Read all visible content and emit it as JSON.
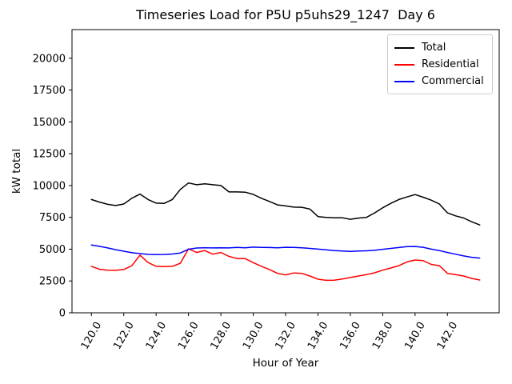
{
  "chart_data": {
    "type": "line",
    "title": "Timeseries Load for P5U p5uhs29_1247  Day 6",
    "xlabel": "Hour of Year",
    "ylabel": "kW total",
    "grid": false,
    "legend_position": "upper right",
    "xlim": [
      118.8,
      145.2
    ],
    "ylim": [
      0,
      22250
    ],
    "xticks": [
      120,
      122,
      124,
      126,
      128,
      130,
      132,
      134,
      136,
      138,
      140,
      142
    ],
    "xtick_labels": [
      "120.0",
      "122.0",
      "124.0",
      "126.0",
      "128.0",
      "130.0",
      "132.0",
      "134.0",
      "136.0",
      "138.0",
      "140.0",
      "142.0"
    ],
    "yticks": [
      0,
      2500,
      5000,
      7500,
      10000,
      12500,
      15000,
      17500,
      20000
    ],
    "ytick_labels": [
      "0",
      "2500",
      "5000",
      "7500",
      "10000",
      "12500",
      "15000",
      "17500",
      "20000"
    ],
    "x": [
      120,
      120.5,
      121,
      121.5,
      122,
      122.5,
      123,
      123.5,
      124,
      124.5,
      125,
      125.5,
      126,
      126.5,
      127,
      127.5,
      128,
      128.5,
      129,
      129.5,
      130,
      130.5,
      131,
      131.5,
      132,
      132.5,
      133,
      133.5,
      134,
      134.5,
      135,
      135.5,
      136,
      136.5,
      137,
      137.5,
      138,
      138.5,
      139,
      139.5,
      140,
      140.5,
      141,
      141.5,
      142,
      142.5,
      143,
      143.5,
      144
    ],
    "series": [
      {
        "name": "Total",
        "color": "#000000",
        "values": [
          8900,
          8700,
          8520,
          8430,
          8550,
          9000,
          9330,
          8900,
          8620,
          8600,
          8900,
          9700,
          10200,
          10060,
          10130,
          10060,
          10000,
          9500,
          9500,
          9480,
          9300,
          9000,
          8750,
          8480,
          8400,
          8300,
          8290,
          8150,
          7560,
          7500,
          7460,
          7470,
          7350,
          7440,
          7500,
          7850,
          8250,
          8600,
          8900,
          9100,
          9290,
          9080,
          8850,
          8550,
          7850,
          7620,
          7450,
          7150,
          6900
        ]
      },
      {
        "name": "Residential",
        "color": "#ff0000",
        "values": [
          3650,
          3420,
          3350,
          3340,
          3400,
          3700,
          4530,
          3950,
          3650,
          3630,
          3650,
          3900,
          5030,
          4740,
          4890,
          4610,
          4740,
          4430,
          4260,
          4260,
          3940,
          3660,
          3400,
          3100,
          2980,
          3130,
          3100,
          2890,
          2640,
          2550,
          2560,
          2660,
          2770,
          2890,
          3000,
          3140,
          3350,
          3520,
          3700,
          4000,
          4150,
          4100,
          3800,
          3700,
          3100,
          3000,
          2890,
          2700,
          2580
        ]
      },
      {
        "name": "Commercial",
        "color": "#0000ff",
        "values": [
          5330,
          5220,
          5100,
          4960,
          4840,
          4720,
          4650,
          4590,
          4570,
          4580,
          4620,
          4700,
          4990,
          5090,
          5110,
          5100,
          5110,
          5100,
          5140,
          5110,
          5160,
          5140,
          5130,
          5110,
          5150,
          5140,
          5110,
          5060,
          5000,
          4950,
          4890,
          4850,
          4830,
          4850,
          4870,
          4910,
          4990,
          5060,
          5130,
          5200,
          5210,
          5150,
          5000,
          4890,
          4740,
          4610,
          4470,
          4360,
          4300
        ]
      }
    ]
  }
}
